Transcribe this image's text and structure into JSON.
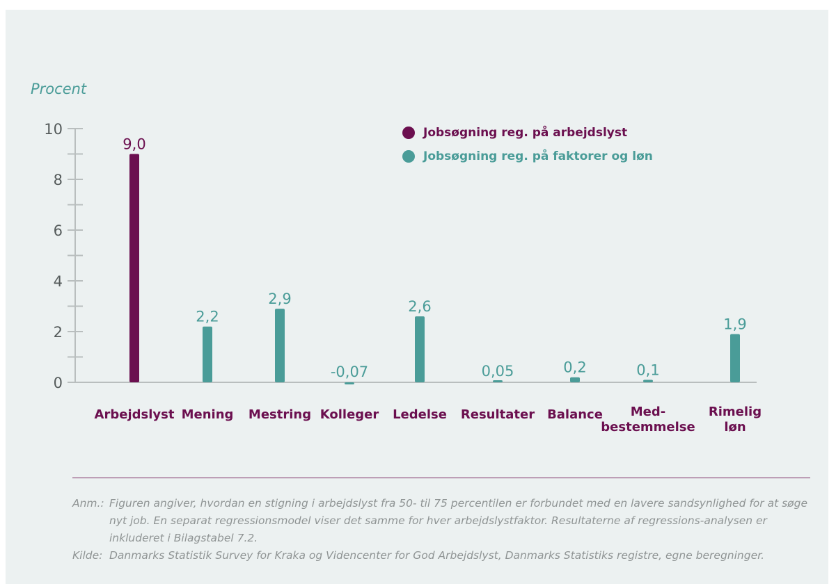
{
  "chart_data": {
    "type": "bar",
    "ylabel": "Procent",
    "ylim": [
      0,
      10
    ],
    "yticks": [
      0,
      2,
      4,
      6,
      8,
      10
    ],
    "categories": [
      [
        "Arbejdslyst"
      ],
      [
        "Mening"
      ],
      [
        "Mestring"
      ],
      [
        "Kolleger"
      ],
      [
        "Ledelse"
      ],
      [
        "Resultater"
      ],
      [
        "Balance"
      ],
      [
        "Med-",
        "bestemmelse"
      ],
      [
        "Rimelig",
        "løn"
      ]
    ],
    "values": [
      9.0,
      2.2,
      2.9,
      -0.07,
      2.6,
      0.05,
      0.2,
      0.1,
      1.9
    ],
    "value_labels": [
      "9,0",
      "2,2",
      "2,9",
      "-0,07",
      "2,6",
      "0,05",
      "0,2",
      "0,1",
      "1,9"
    ],
    "bar_series": [
      0,
      1,
      1,
      1,
      1,
      1,
      1,
      1,
      1
    ],
    "series": [
      {
        "name": "Jobsøgning reg. på arbejdslyst",
        "color": "#6b0f4f"
      },
      {
        "name": "Jobsøgning reg. på faktorer og løn",
        "color": "#4a9c98"
      }
    ],
    "grid": false,
    "legend_position": "top-center"
  },
  "notes": {
    "anm_label": "Anm.:",
    "anm_text": "Figuren angiver, hvordan en stigning i arbejdslyst fra 50- til 75 percentilen er forbundet med en lavere sandsynlighed for at søge nyt job. En separat regressionsmodel viser det samme for hver arbejdslystfaktor. Resultaterne af regressions-analysen er inkluderet i Bilagstabel 7.2.",
    "kilde_label": "Kilde:",
    "kilde_text": "Danmarks Statistik Survey for Kraka og Videncenter for God Arbejdslyst, Danmarks Statistiks registre, egne beregninger."
  }
}
